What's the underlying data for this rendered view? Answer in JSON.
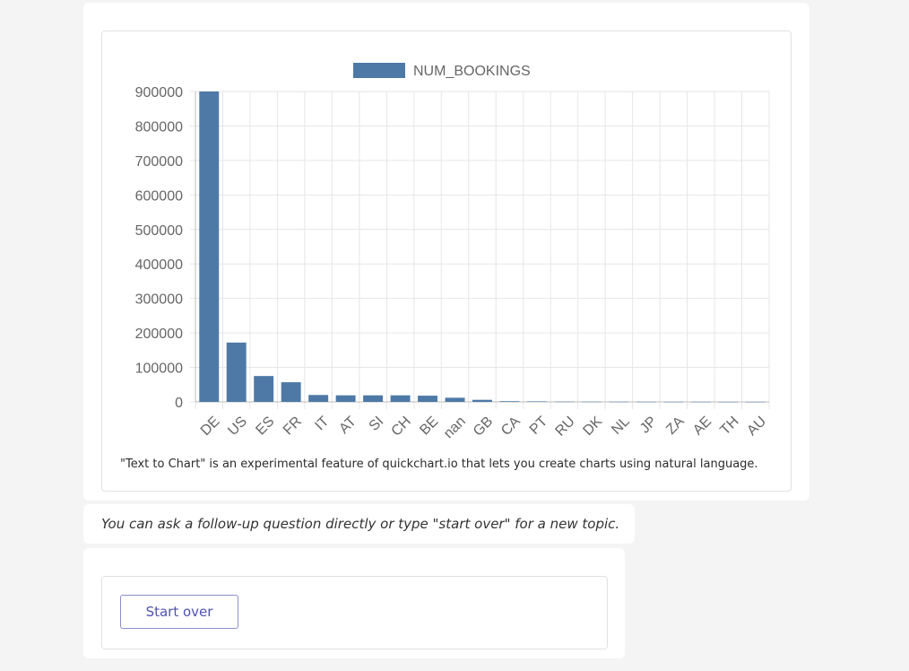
{
  "chart_data": {
    "type": "bar",
    "categories": [
      "DE",
      "US",
      "ES",
      "FR",
      "IT",
      "AT",
      "SI",
      "CH",
      "BE",
      "nan",
      "GB",
      "CA",
      "PT",
      "RU",
      "DK",
      "NL",
      "JP",
      "ZA",
      "AE",
      "TH",
      "AU"
    ],
    "series": [
      {
        "name": "NUM_BOOKINGS",
        "color": "#4e79a7",
        "values": [
          900000,
          172000,
          75000,
          57000,
          20000,
          19000,
          19000,
          19000,
          18000,
          12000,
          6000,
          2000,
          1500,
          800,
          600,
          500,
          400,
          300,
          300,
          200,
          150
        ]
      }
    ],
    "yticks": [
      "0",
      "100000",
      "200000",
      "300000",
      "400000",
      "500000",
      "600000",
      "700000",
      "800000",
      "900000"
    ],
    "ylim": [
      0,
      900000
    ],
    "legend": "top-center",
    "grid": true
  },
  "chart_note": "\"Text to Chart\" is an experimental feature of quickchart.io that lets you create charts using natural language.",
  "followup_text": "You can ask a follow-up question directly or type \"start over\" for a new topic.",
  "actions": {
    "start_over_label": "Start over"
  },
  "colors": {
    "bar": "#4e79a7",
    "grid": "#e6e6e6",
    "axis_text": "#666666"
  }
}
